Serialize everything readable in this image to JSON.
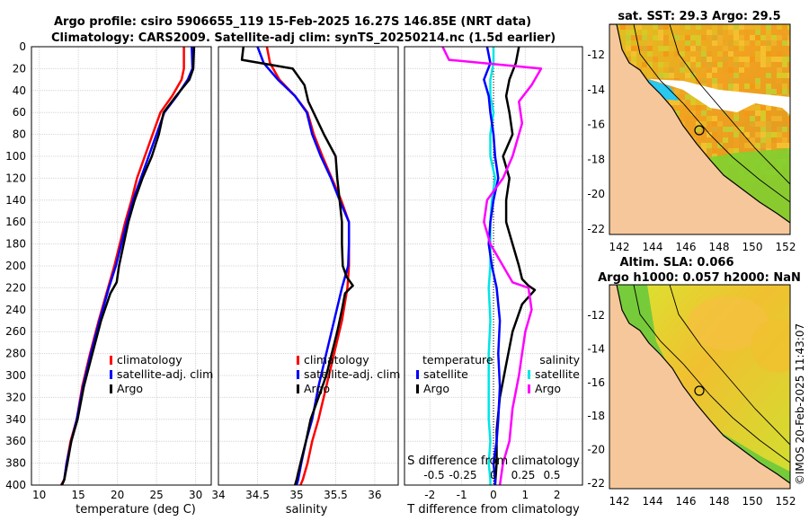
{
  "header": {
    "line1": "Argo profile: csiro 5906655_119 15-Feb-2025 16.27S 146.85E (NRT data)",
    "line2": "Climatology: CARS2009. Satellite-adj clim: synTS_20250214.nc (1.5d earlier)"
  },
  "colors": {
    "climatology": "#ff0000",
    "satellite": "#0000ff",
    "argo": "#000000",
    "t_diff": "#00e5e5",
    "s_diff": "#ff00ff",
    "sst_land": "#f5c79a",
    "sla_land": "#f5c79a"
  },
  "chart_data": [
    {
      "type": "line",
      "name": "temperature-panel",
      "xlabel": "temperature (deg C)",
      "xlim": [
        9,
        32
      ],
      "ylim": [
        400,
        0
      ],
      "xticks": [
        10,
        15,
        20,
        25,
        30
      ],
      "yticks": [
        0,
        20,
        40,
        60,
        80,
        100,
        120,
        140,
        160,
        180,
        200,
        220,
        240,
        260,
        280,
        300,
        320,
        340,
        360,
        380,
        400
      ],
      "legend": [
        "climatology",
        "satellite-adj. clim",
        "Argo"
      ],
      "series": [
        {
          "name": "climatology",
          "x": [
            28.5,
            28.5,
            28.2,
            27,
            25.5,
            24.5,
            23.5,
            22.5,
            21.8,
            21,
            20.3,
            19.6,
            18.8,
            17.6,
            16.5,
            15.5,
            14.8,
            14,
            13.5,
            13.2,
            12.8
          ],
          "y": [
            0,
            20,
            30,
            45,
            60,
            80,
            100,
            120,
            140,
            160,
            180,
            200,
            220,
            250,
            280,
            310,
            340,
            360,
            380,
            395,
            400
          ]
        },
        {
          "name": "satellite-adj. clim",
          "x": [
            29.5,
            29.6,
            29,
            27.6,
            26,
            25,
            24,
            23,
            22,
            21.2,
            20.5,
            19.8,
            18.9,
            17.7,
            16.6,
            15.6,
            14.8,
            14.1,
            13.5,
            13.2,
            12.9
          ],
          "y": [
            0,
            20,
            30,
            45,
            60,
            80,
            100,
            120,
            140,
            160,
            180,
            200,
            220,
            250,
            280,
            310,
            340,
            360,
            380,
            395,
            400
          ]
        },
        {
          "name": "Argo",
          "x": [
            29.8,
            29.7,
            29.2,
            27.5,
            25.9,
            25.3,
            24.4,
            23.2,
            22.2,
            21.4,
            20.8,
            20.2,
            19.9,
            19.1,
            17.9,
            16.8,
            15.7,
            14.9,
            14.1,
            13.6,
            13.2,
            12.9
          ],
          "y": [
            0,
            20,
            30,
            45,
            60,
            80,
            100,
            120,
            140,
            160,
            180,
            200,
            215,
            225,
            250,
            280,
            310,
            340,
            360,
            380,
            395,
            400
          ]
        }
      ]
    },
    {
      "type": "line",
      "name": "salinity-panel",
      "xlabel": "salinity",
      "xlim": [
        34,
        36.3
      ],
      "ylim": [
        400,
        0
      ],
      "xticks": [
        34,
        34.5,
        35,
        35.5,
        36
      ],
      "legend": [
        "climatology",
        "satellite-adj. clim",
        "Argo"
      ],
      "series": [
        {
          "name": "climatology",
          "x": [
            34.62,
            34.66,
            34.78,
            34.98,
            35.14,
            35.22,
            35.33,
            35.45,
            35.57,
            35.67,
            35.67,
            35.67,
            35.65,
            35.58,
            35.48,
            35.38,
            35.28,
            35.2,
            35.14,
            35.08,
            35.05
          ],
          "y": [
            0,
            15,
            30,
            45,
            60,
            80,
            100,
            120,
            140,
            160,
            180,
            200,
            220,
            250,
            280,
            310,
            340,
            360,
            380,
            395,
            400
          ]
        },
        {
          "name": "satellite-adj. clim",
          "x": [
            34.5,
            34.58,
            34.76,
            34.98,
            35.13,
            35.2,
            35.31,
            35.44,
            35.55,
            35.67,
            35.67,
            35.66,
            35.58,
            35.48,
            35.38,
            35.28,
            35.2,
            35.12,
            35.06,
            35.02,
            35.0
          ],
          "y": [
            0,
            15,
            30,
            45,
            60,
            80,
            100,
            120,
            140,
            160,
            180,
            200,
            220,
            250,
            280,
            310,
            340,
            360,
            380,
            395,
            400
          ]
        },
        {
          "name": "Argo",
          "x": [
            34.32,
            34.3,
            34.95,
            35.1,
            35.15,
            35.25,
            35.35,
            35.5,
            35.52,
            35.55,
            35.58,
            35.58,
            35.59,
            35.64,
            35.72,
            35.62,
            35.58,
            35.52,
            35.45,
            35.38,
            35.28,
            35.18,
            35.12,
            35.05,
            35.0,
            34.98
          ],
          "y": [
            0,
            12,
            20,
            35,
            50,
            65,
            80,
            100,
            120,
            140,
            160,
            180,
            200,
            210,
            218,
            225,
            240,
            260,
            280,
            300,
            320,
            340,
            360,
            380,
            395,
            400
          ]
        }
      ]
    },
    {
      "type": "line",
      "name": "difference-panel",
      "xlabel": "T difference from climatology",
      "top_label": "S difference from climatology",
      "xlim": [
        -2.8,
        2.8
      ],
      "ylim": [
        400,
        0
      ],
      "xticks": [
        -2,
        -1,
        0,
        1,
        2
      ],
      "s_ticks": [
        "-0.5",
        "-0.25",
        "0",
        "0.25",
        "0.5"
      ],
      "legend_left_title": "temperature",
      "legend_right_title": "salinity",
      "legend_left": [
        "satellite",
        "Argo"
      ],
      "legend_right": [
        "satellite",
        "Argo"
      ],
      "series": [
        {
          "name": "T satellite",
          "x": [
            0,
            0,
            -0.1,
            -0.1,
            0,
            -0.1,
            -0.1,
            0.05,
            -0.05,
            -0.1,
            -0.1,
            -0.1,
            -0.15,
            -0.1,
            -0.15,
            -0.15,
            -0.15,
            -0.1,
            -0.15,
            -0.1,
            -0.1
          ],
          "y": [
            0,
            15,
            30,
            45,
            60,
            80,
            100,
            120,
            140,
            160,
            180,
            200,
            220,
            250,
            280,
            310,
            340,
            360,
            380,
            395,
            400
          ]
        },
        {
          "name": "T Argo",
          "x": [
            0.8,
            0.7,
            0.5,
            0.4,
            0.5,
            0.6,
            0.3,
            0.5,
            0.4,
            0.4,
            0.6,
            0.8,
            0.9,
            1.1,
            1.3,
            0.9,
            0.6,
            0.4,
            0.2,
            0.1,
            0.1,
            0.05
          ],
          "y": [
            0,
            15,
            30,
            45,
            60,
            80,
            100,
            120,
            140,
            160,
            180,
            200,
            212,
            218,
            222,
            235,
            260,
            290,
            320,
            350,
            380,
            400
          ]
        },
        {
          "name": "S satellite",
          "x": [
            -0.2,
            -0.1,
            -0.3,
            -0.15,
            -0.1,
            0,
            0.05,
            0.15,
            0.0,
            -0.1,
            -0.15,
            -0.05,
            0.1,
            0.2,
            0.15,
            0.2,
            0.15,
            0.1,
            0.0,
            0.05,
            0.05
          ],
          "y": [
            0,
            15,
            30,
            45,
            60,
            80,
            100,
            120,
            140,
            160,
            180,
            200,
            220,
            250,
            280,
            310,
            340,
            360,
            380,
            395,
            400
          ]
        },
        {
          "name": "S Argo",
          "x": [
            -1.6,
            -1.4,
            1.5,
            1.2,
            0.8,
            0.9,
            0.6,
            0.3,
            -0.2,
            -0.3,
            -0.1,
            0.3,
            0.6,
            1.1,
            1.2,
            1.0,
            0.9,
            0.8,
            0.6,
            0.5,
            0.3,
            0.2
          ],
          "y": [
            0,
            12,
            20,
            35,
            50,
            70,
            100,
            120,
            140,
            160,
            180,
            200,
            215,
            220,
            240,
            260,
            280,
            300,
            330,
            360,
            380,
            400
          ]
        }
      ]
    }
  ],
  "sst_map": {
    "title": "sat. SST: 29.3  Argo: 29.5",
    "yticks": [
      "-12",
      "-14",
      "-16",
      "-18",
      "-20",
      "-22"
    ],
    "xticks": [
      "142",
      "144",
      "146",
      "148",
      "150",
      "152"
    ]
  },
  "sla_map": {
    "title1": "Altim. SLA: 0.066",
    "title2": "Argo h1000: 0.057  h2000: NaN",
    "yticks": [
      "-12",
      "-14",
      "-16",
      "-18",
      "-20",
      "-22"
    ],
    "xticks": [
      "142",
      "144",
      "146",
      "148",
      "150",
      "152"
    ]
  },
  "credit": "©IMOS 20-Feb-2025 11:43:07"
}
